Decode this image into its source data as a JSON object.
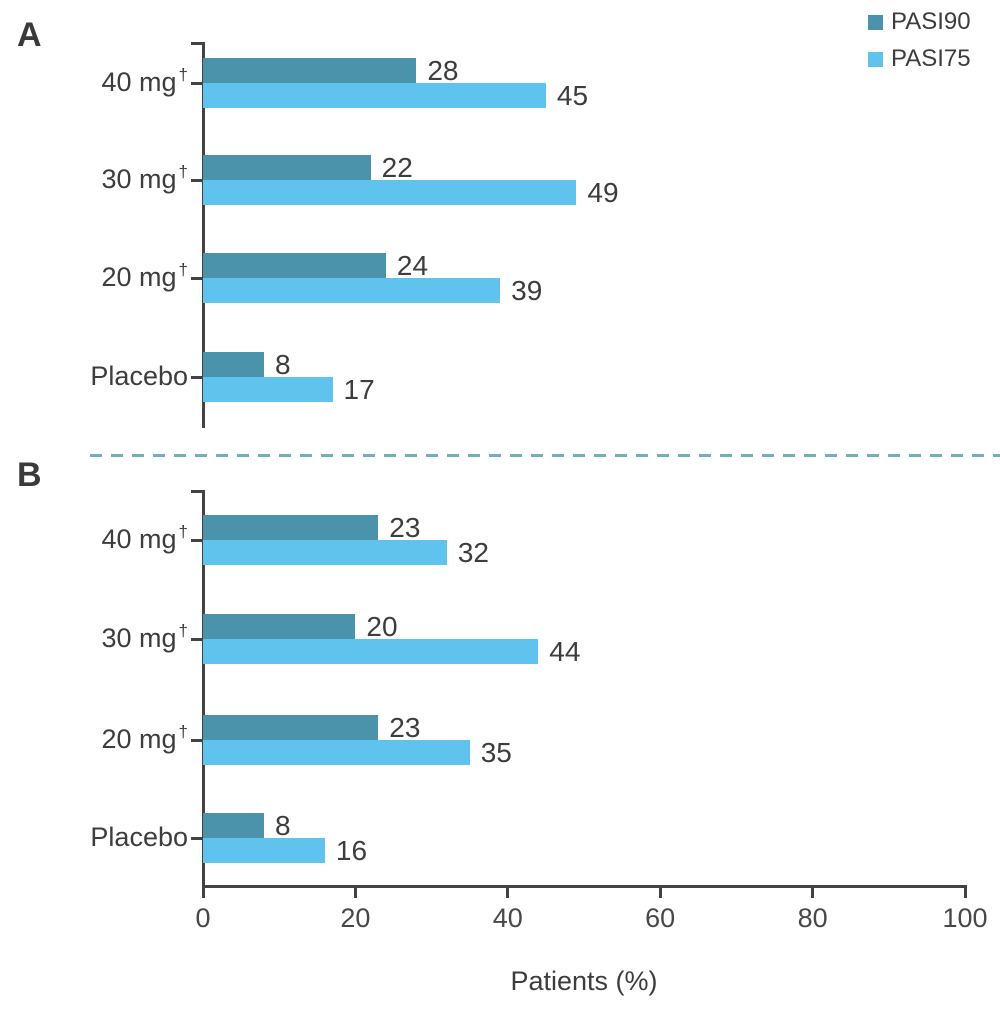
{
  "panels": [
    {
      "letter": "A"
    },
    {
      "letter": "B"
    }
  ],
  "legend": {
    "position": "top-right",
    "items": [
      {
        "label": "PASI90",
        "color": "#4a93aa"
      },
      {
        "label": "PASI75",
        "color": "#5fc3ee"
      }
    ]
  },
  "axis": {
    "xlabel": "Patients (%)",
    "xticks": [
      0,
      20,
      40,
      60,
      80,
      100
    ],
    "xlim": [
      0,
      100
    ]
  },
  "chart_data": [
    {
      "type": "bar",
      "orientation": "horizontal",
      "panel": "A",
      "categories": [
        "40 mg†",
        "30 mg†",
        "20 mg†",
        "Placebo"
      ],
      "series": [
        {
          "name": "PASI90",
          "values": [
            28,
            22,
            24,
            8
          ],
          "color": "#4a93aa"
        },
        {
          "name": "PASI75",
          "values": [
            45,
            49,
            39,
            17
          ],
          "color": "#5fc3ee"
        }
      ],
      "data_labels": true,
      "xlabel": "Patients (%)",
      "xlim": [
        0,
        100
      ],
      "xticks": [
        0,
        20,
        40,
        60,
        80,
        100
      ],
      "grid": false,
      "legend_position": "top-right"
    },
    {
      "type": "bar",
      "orientation": "horizontal",
      "panel": "B",
      "categories": [
        "40 mg†",
        "30 mg†",
        "20 mg†",
        "Placebo"
      ],
      "series": [
        {
          "name": "PASI90",
          "values": [
            23,
            20,
            23,
            8
          ],
          "color": "#4a93aa"
        },
        {
          "name": "PASI75",
          "values": [
            32,
            44,
            35,
            16
          ],
          "color": "#5fc3ee"
        }
      ],
      "data_labels": true,
      "xlabel": "Patients (%)",
      "xlim": [
        0,
        100
      ],
      "xticks": [
        0,
        20,
        40,
        60,
        80,
        100
      ],
      "grid": false
    }
  ],
  "colors": {
    "pasi90": "#4a93aa",
    "pasi75": "#5fc3ee",
    "divider_dashed": "#73aebb",
    "text": "#3d3d3f",
    "axis": "#434345"
  }
}
